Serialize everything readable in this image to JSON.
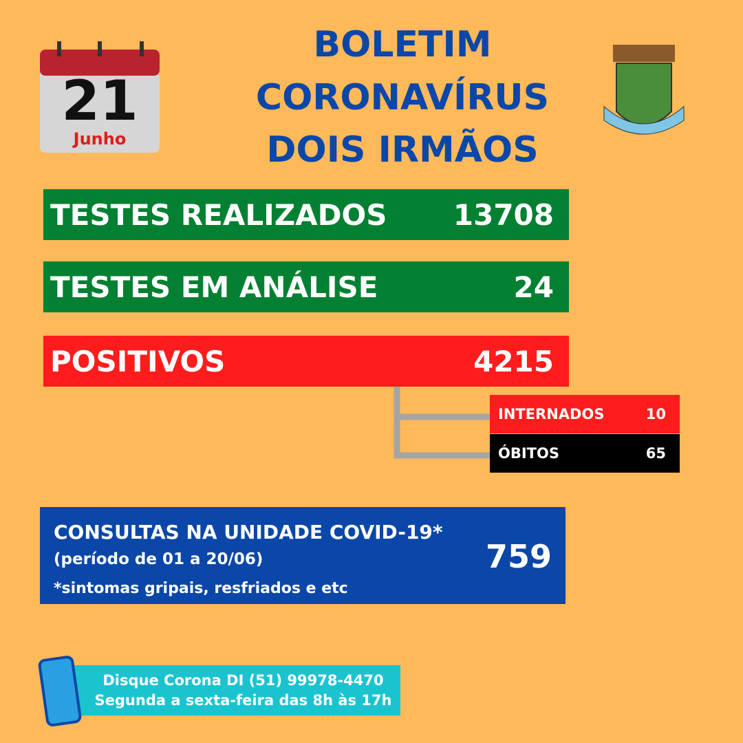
{
  "calendar": {
    "day": "21",
    "month": "Junho"
  },
  "title": [
    "BOLETIM",
    "CORONAVÍRUS",
    "DOIS IRMÃOS"
  ],
  "stats": [
    {
      "label": "TESTES REALIZADOS",
      "value": "13708"
    },
    {
      "label": "TESTES EM ANÁLISE",
      "value": "24"
    },
    {
      "label": "POSITIVOS",
      "value": "4215"
    }
  ],
  "sub": [
    {
      "label": "INTERNADOS",
      "value": "10"
    },
    {
      "label": "ÓBITOS",
      "value": "65"
    }
  ],
  "consultas": {
    "title": "CONSULTAS NA UNIDADE COVID-19*",
    "period": "(período de 01 a 20/06)",
    "note": "*sintomas gripais, resfriados e etc",
    "value": "759"
  },
  "contact": [
    "Disque Corona DI (51) 99978-4470",
    "Segunda a sexta-feira das 8h às 17h"
  ]
}
